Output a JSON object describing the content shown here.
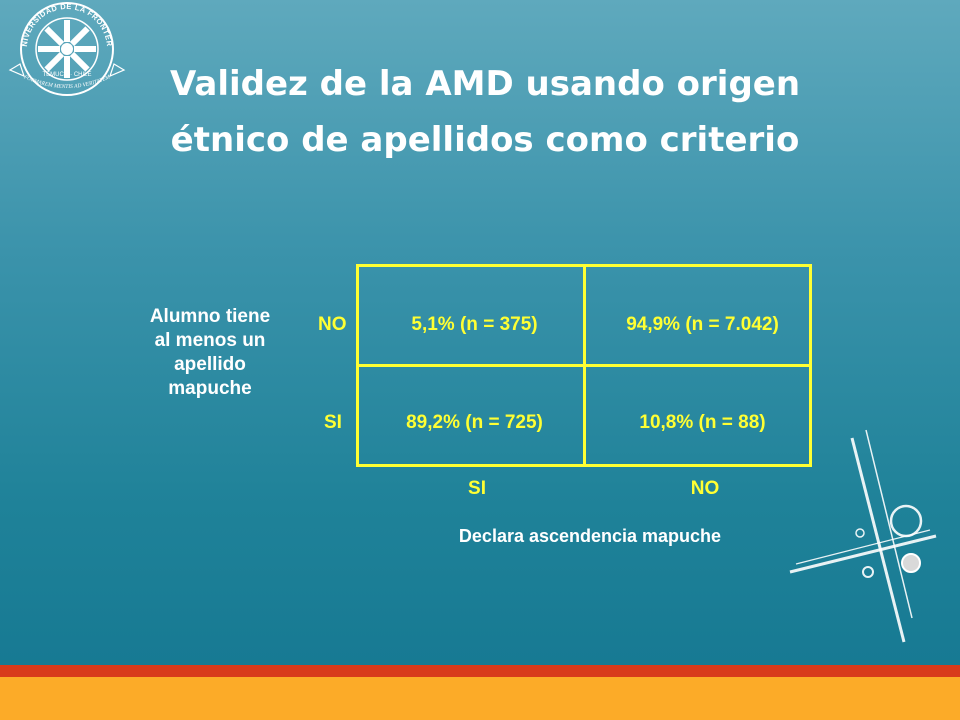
{
  "logo": {
    "top_text": "UNIVERSIDAD DE LA FRONTERA",
    "inner_text": "TEMUCO · CHILE",
    "motto": "FORMAREM MENTIS AD VERITATEM"
  },
  "title_line1": "Validez de la AMD usando origen",
  "title_line2": "étnico de apellidos como criterio",
  "row_axis": {
    "label_lines": [
      "Alumno tiene",
      "al menos un",
      "apellido",
      "mapuche"
    ],
    "categories": [
      "NO",
      "SI"
    ]
  },
  "col_axis": {
    "label": "Declara ascendencia mapuche",
    "categories": [
      "SI",
      "NO"
    ]
  },
  "cells": [
    [
      "5,1% (n = 375)",
      "94,9% (n = 7.042)"
    ],
    [
      "89,2% (n = 725)",
      "10,8% (n = 88)"
    ]
  ],
  "colors": {
    "accent": "#ffff33",
    "band_red": "#d83a1b",
    "band_orange": "#fcab28"
  }
}
